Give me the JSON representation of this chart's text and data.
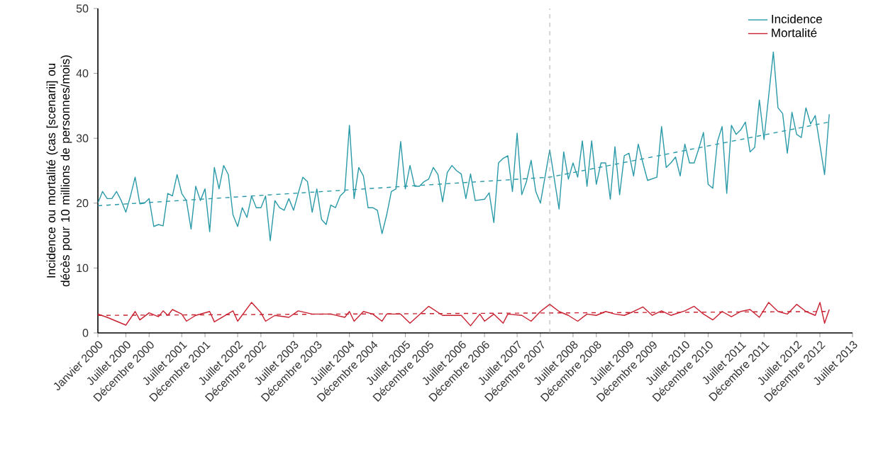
{
  "chart_data": {
    "type": "line",
    "ylabel": "Incidence ou mortalité (cas [scenarii] ou décès pour 10 millions de personnes/mois)",
    "xlim": [
      "2000-01",
      "2013-07"
    ],
    "ylim": [
      0,
      50
    ],
    "yticks": [
      0,
      10,
      20,
      30,
      40,
      50
    ],
    "xticks": [
      {
        "value": "2000-01",
        "label": "Janvier 2000"
      },
      {
        "value": "2000-07",
        "label": "Juillet 2000"
      },
      {
        "value": "2000-12",
        "label": "Décembre 2000"
      },
      {
        "value": "2001-07",
        "label": "Juillet 2001"
      },
      {
        "value": "2001-12",
        "label": "Décembre 2001"
      },
      {
        "value": "2002-07",
        "label": "Juillet 2002"
      },
      {
        "value": "2002-12",
        "label": "Décembre 2002"
      },
      {
        "value": "2003-07",
        "label": "Juillet 2003"
      },
      {
        "value": "2003-12",
        "label": "Décembre 2003"
      },
      {
        "value": "2004-07",
        "label": "Juillet 2004"
      },
      {
        "value": "2004-12",
        "label": "Décembre 2004"
      },
      {
        "value": "2005-07",
        "label": "Juillet 2005"
      },
      {
        "value": "2005-12",
        "label": "Décembre 2005"
      },
      {
        "value": "2006-07",
        "label": "Juillet 2006"
      },
      {
        "value": "2006-12",
        "label": "Décembre 2006"
      },
      {
        "value": "2007-07",
        "label": "Juillet 2007"
      },
      {
        "value": "2007-12",
        "label": "Décembre 2007"
      },
      {
        "value": "2008-07",
        "label": "Juillet 2008"
      },
      {
        "value": "2008-12",
        "label": "Décembre 2008"
      },
      {
        "value": "2009-07",
        "label": "Juillet 2009"
      },
      {
        "value": "2009-12",
        "label": "Décembre 2009"
      },
      {
        "value": "2010-07",
        "label": "Juillet 2010"
      },
      {
        "value": "2010-12",
        "label": "Décembre 2010"
      },
      {
        "value": "2011-07",
        "label": "Juillet 2011"
      },
      {
        "value": "2011-12",
        "label": "Décembre 2011"
      },
      {
        "value": "2012-07",
        "label": "Juillet 2012"
      },
      {
        "value": "2012-12",
        "label": "Décembre 2012"
      },
      {
        "value": "2013-07",
        "label": "Juillet 2013"
      }
    ],
    "legend": "top right",
    "marker": "none",
    "ref_lines": [
      {
        "axis": "x",
        "value": "2008-02",
        "color": "#999999",
        "line_style": "dashed"
      }
    ],
    "series": [
      {
        "name": "Incidence",
        "color": "#2a9aa8",
        "x": [
          "2000-01",
          "2000-02",
          "2000-03",
          "2000-04",
          "2000-05",
          "2000-06",
          "2000-07",
          "2000-08",
          "2000-09",
          "2000-10",
          "2000-11",
          "2000-12",
          "2001-01",
          "2001-02",
          "2001-03",
          "2001-04",
          "2001-05",
          "2001-06",
          "2001-07",
          "2001-08",
          "2001-09",
          "2001-10",
          "2001-11",
          "2001-12",
          "2002-01",
          "2002-02",
          "2002-03",
          "2002-04",
          "2002-05",
          "2002-06",
          "2002-07",
          "2002-08",
          "2002-09",
          "2002-10",
          "2002-11",
          "2002-12",
          "2003-01",
          "2003-02",
          "2003-03",
          "2003-04",
          "2003-05",
          "2003-06",
          "2003-07",
          "2003-08",
          "2003-09",
          "2003-10",
          "2003-11",
          "2003-12",
          "2004-01",
          "2004-02",
          "2004-03",
          "2004-04",
          "2004-05",
          "2004-06",
          "2004-07",
          "2004-08",
          "2004-09",
          "2004-10",
          "2004-11",
          "2004-12",
          "2005-01",
          "2005-02",
          "2005-03",
          "2005-04",
          "2005-05",
          "2005-06",
          "2005-07",
          "2005-08",
          "2005-09",
          "2005-10",
          "2005-11",
          "2005-12",
          "2006-01",
          "2006-02",
          "2006-03",
          "2006-04",
          "2006-05",
          "2006-06",
          "2006-07",
          "2006-08",
          "2006-09",
          "2006-10",
          "2006-12",
          "2007-01",
          "2007-02",
          "2007-03",
          "2007-04",
          "2007-05",
          "2007-06",
          "2007-07",
          "2007-08",
          "2007-09",
          "2007-10",
          "2007-11",
          "2007-12",
          "2008-02",
          "2008-04",
          "2008-05",
          "2008-06",
          "2008-07",
          "2008-08",
          "2008-09",
          "2008-10",
          "2008-11",
          "2008-12",
          "2009-01",
          "2009-02",
          "2009-03",
          "2009-04",
          "2009-05",
          "2009-06",
          "2009-07",
          "2009-08",
          "2009-09",
          "2009-10",
          "2009-11",
          "2010-01",
          "2010-02",
          "2010-03",
          "2010-04",
          "2010-05",
          "2010-06",
          "2010-07",
          "2010-08",
          "2010-09",
          "2010-10",
          "2010-11",
          "2010-12",
          "2011-01",
          "2011-02",
          "2011-03",
          "2011-04",
          "2011-05",
          "2011-06",
          "2011-07",
          "2011-08",
          "2011-09",
          "2011-10",
          "2011-11",
          "2011-12",
          "2012-02",
          "2012-03",
          "2012-04",
          "2012-05",
          "2012-06",
          "2012-07",
          "2012-08",
          "2012-09",
          "2012-10",
          "2012-11",
          "2013-01",
          "2013-02"
        ],
        "values": [
          20.0,
          21.8,
          20.7,
          20.7,
          21.8,
          20.4,
          18.6,
          21.1,
          24.0,
          19.9,
          20.0,
          20.7,
          16.4,
          16.7,
          16.5,
          21.5,
          21.1,
          24.4,
          21.5,
          20.4,
          16.0,
          22.6,
          20.4,
          22.2,
          15.6,
          25.5,
          22.2,
          25.8,
          24.4,
          18.2,
          16.4,
          19.3,
          17.8,
          21.1,
          19.3,
          19.3,
          21.1,
          14.2,
          20.4,
          19.3,
          18.9,
          20.7,
          18.9,
          21.5,
          24.0,
          23.3,
          18.6,
          22.2,
          17.5,
          16.7,
          19.7,
          19.3,
          21.1,
          21.8,
          32.0,
          20.7,
          25.5,
          24.2,
          19.3,
          19.3,
          18.9,
          15.3,
          18.2,
          21.8,
          22.2,
          29.5,
          22.2,
          25.8,
          22.6,
          22.6,
          23.3,
          23.7,
          25.5,
          24.4,
          20.2,
          24.7,
          25.8,
          25.0,
          24.5,
          20.7,
          24.5,
          20.4,
          20.6,
          21.6,
          17.0,
          26.2,
          26.9,
          27.3,
          21.8,
          30.8,
          21.3,
          23.3,
          26.6,
          21.8,
          20.0,
          28.2,
          19.1,
          27.9,
          23.7,
          26.2,
          24.0,
          29.6,
          22.6,
          29.6,
          22.9,
          26.2,
          26.2,
          20.6,
          28.7,
          21.3,
          27.3,
          27.7,
          24.2,
          29.1,
          26.2,
          23.5,
          24.0,
          31.8,
          25.5,
          26.2,
          27.1,
          24.2,
          29.1,
          26.2,
          26.2,
          28.4,
          30.9,
          22.9,
          22.3,
          29.5,
          31.8,
          21.5,
          32.0,
          30.6,
          31.3,
          32.5,
          27.9,
          28.6,
          35.9,
          29.8,
          43.3,
          34.7,
          33.8,
          27.7,
          34.0,
          30.6,
          30.1,
          34.7,
          32.2,
          33.5,
          24.4,
          33.7
        ]
      },
      {
        "name": "Mortalité",
        "color": "#c8202f",
        "x": [
          "2000-01",
          "2000-03",
          "2000-07",
          "2000-09",
          "2000-10",
          "2000-12",
          "2001-02",
          "2001-03",
          "2001-04",
          "2001-05",
          "2001-07",
          "2001-08",
          "2001-10",
          "2002-01",
          "2002-02",
          "2002-06",
          "2002-07",
          "2002-10",
          "2002-12",
          "2003-01",
          "2003-03",
          "2003-06",
          "2003-08",
          "2003-11",
          "2004-03",
          "2004-06",
          "2004-07",
          "2004-08",
          "2004-10",
          "2004-12",
          "2005-02",
          "2005-03",
          "2005-06",
          "2005-08",
          "2005-12",
          "2006-03",
          "2006-05",
          "2006-07",
          "2006-09",
          "2006-11",
          "2006-12",
          "2007-02",
          "2007-04",
          "2007-05",
          "2007-08",
          "2007-10",
          "2007-12",
          "2008-02",
          "2008-04",
          "2008-06",
          "2008-08",
          "2008-10",
          "2008-12",
          "2009-02",
          "2009-04",
          "2009-06",
          "2009-08",
          "2009-10",
          "2009-12",
          "2010-02",
          "2010-04",
          "2010-07",
          "2010-09",
          "2010-11",
          "2011-01",
          "2011-03",
          "2011-05",
          "2011-07",
          "2011-09",
          "2011-11",
          "2012-01",
          "2012-03",
          "2012-05",
          "2012-07",
          "2012-09",
          "2012-11",
          "2012-12",
          "2013-01",
          "2013-02"
        ],
        "values": [
          2.9,
          2.4,
          1.2,
          3.3,
          2.0,
          3.1,
          2.5,
          3.4,
          2.7,
          3.6,
          2.9,
          1.8,
          2.7,
          3.3,
          1.7,
          3.4,
          1.8,
          4.7,
          3.1,
          1.8,
          2.7,
          2.4,
          3.4,
          2.9,
          2.9,
          2.4,
          3.3,
          1.8,
          3.3,
          2.9,
          1.8,
          2.9,
          2.9,
          1.5,
          4.1,
          2.7,
          2.7,
          2.7,
          1.1,
          2.9,
          1.8,
          2.9,
          1.5,
          2.9,
          2.7,
          1.8,
          3.3,
          4.4,
          3.3,
          2.7,
          1.8,
          2.9,
          2.7,
          3.3,
          2.9,
          2.7,
          3.3,
          4.0,
          2.7,
          3.4,
          2.7,
          3.4,
          4.1,
          2.9,
          2.0,
          3.3,
          2.5,
          3.3,
          3.6,
          2.4,
          4.7,
          3.3,
          2.9,
          4.4,
          3.3,
          2.7,
          4.7,
          1.5,
          3.6
        ]
      },
      {
        "type": "line",
        "line_style": "dashed",
        "color": "#2a9aa8",
        "x": [
          "2000-01",
          "2008-02",
          "2013-02"
        ],
        "values": [
          19.6,
          24.0,
          32.5
        ]
      },
      {
        "type": "line",
        "line_style": "dashed",
        "color": "#c8202f",
        "x": [
          "2000-01",
          "2013-02"
        ],
        "values": [
          2.7,
          3.3
        ]
      }
    ]
  }
}
